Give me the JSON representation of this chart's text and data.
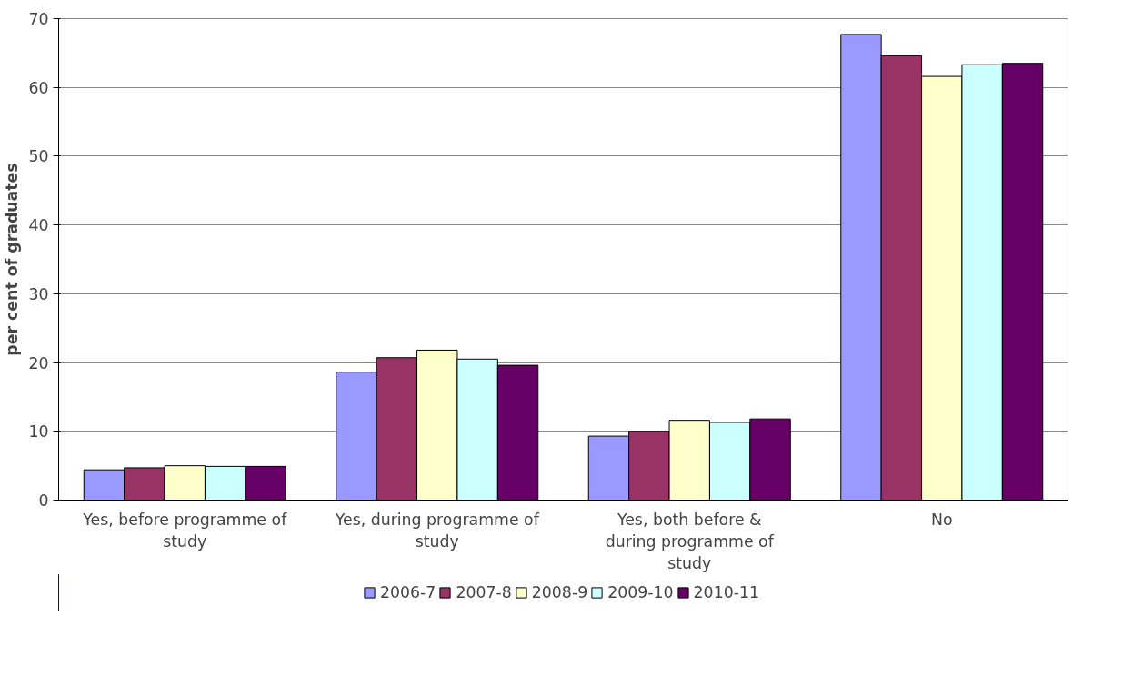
{
  "chart_data": {
    "type": "bar",
    "ylabel": "per cent of graduates",
    "categories": [
      "Yes, before programme of study",
      "Yes, during programme of study",
      "Yes, both before & during programme of study",
      "No"
    ],
    "series": [
      {
        "name": "2006-7",
        "color": "#9999ff",
        "values": [
          4.4,
          18.6,
          9.3,
          67.7
        ]
      },
      {
        "name": "2007-8",
        "color": "#993366",
        "values": [
          4.7,
          20.7,
          10.0,
          64.6
        ]
      },
      {
        "name": "2008-9",
        "color": "#ffffcc",
        "values": [
          5.0,
          21.8,
          11.6,
          61.6
        ]
      },
      {
        "name": "2009-10",
        "color": "#ccffff",
        "values": [
          4.9,
          20.5,
          11.3,
          63.3
        ]
      },
      {
        "name": "2010-11",
        "color": "#660066",
        "values": [
          4.9,
          19.6,
          11.8,
          63.5
        ]
      }
    ],
    "ylim": [
      0,
      70
    ],
    "yticks": [
      0,
      10,
      20,
      30,
      40,
      50,
      60,
      70
    ],
    "grid": "y",
    "legend": "bottom"
  }
}
